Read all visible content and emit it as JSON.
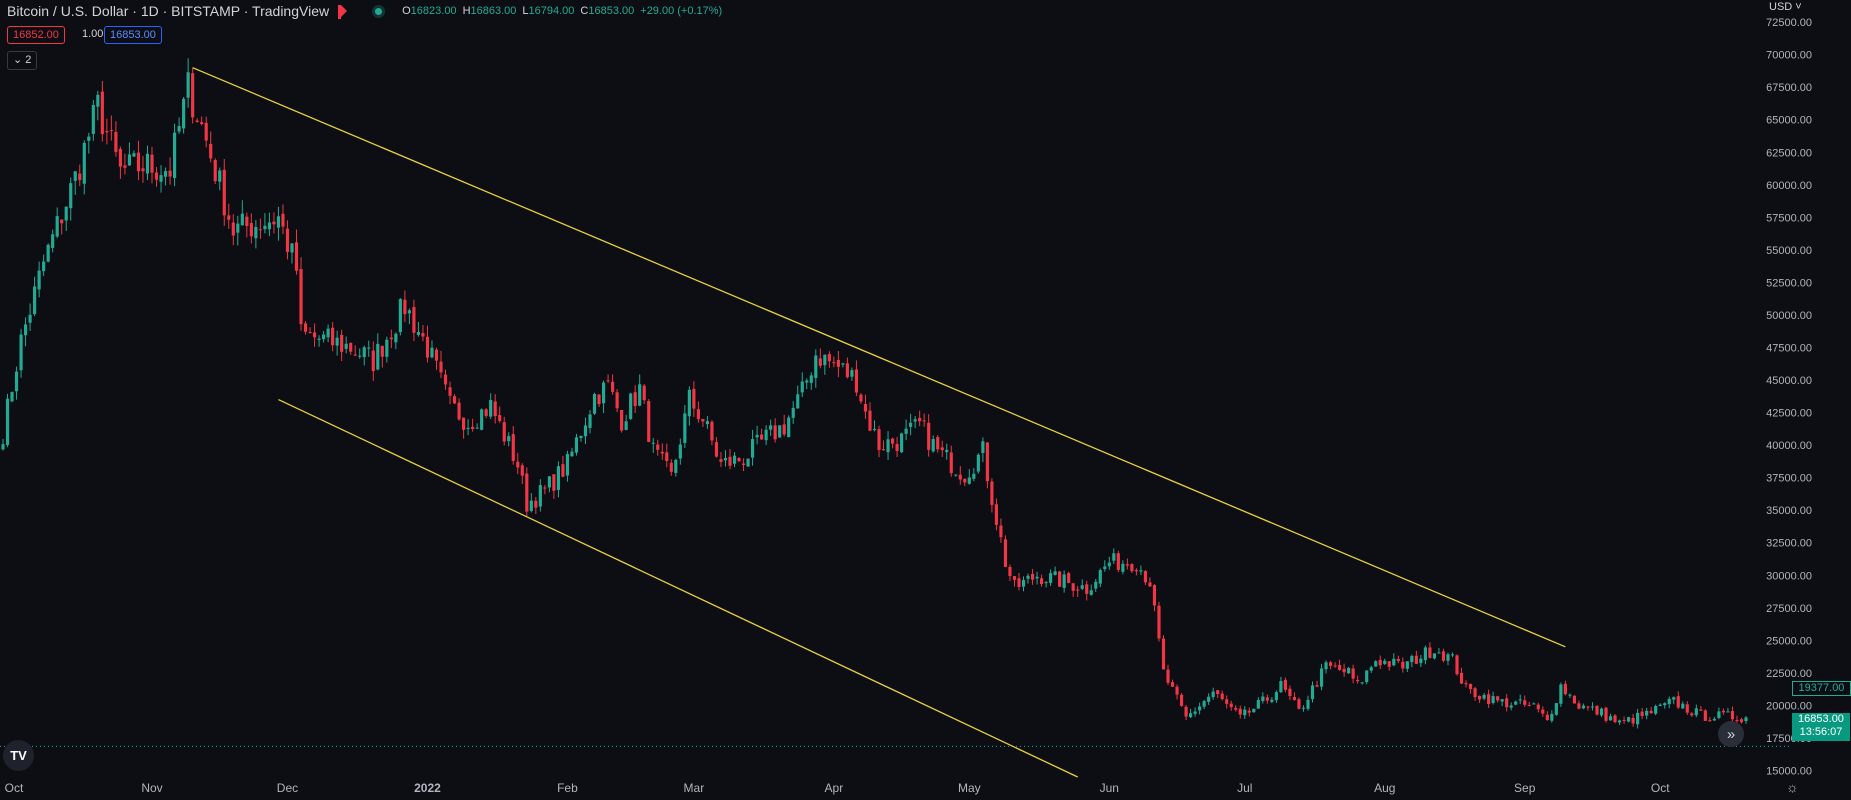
{
  "header": {
    "symbol_title": "Bitcoin / U.S. Dollar · 1D · BITSTAMP · TradingView",
    "ohlc": [
      {
        "k": "O",
        "v": "16823.00"
      },
      {
        "k": "H",
        "v": "16863.00"
      },
      {
        "k": "L",
        "v": "16794.00"
      },
      {
        "k": "C",
        "v": "16853.00"
      },
      {
        "k": "",
        "v": "+29.00 (+0.17%)"
      }
    ],
    "sell_price": "16852.00",
    "spread": "1.00",
    "buy_price": "16853.00",
    "indicators_toggle": "2"
  },
  "currency": "USD",
  "price_tags": {
    "mid": "19377.00",
    "last_price": "16853.00",
    "countdown": "13:56:07"
  },
  "colors": {
    "background": "#0d0e13",
    "up": "#22ab94",
    "down": "#f23645",
    "trendline": "#e8d13a",
    "axis_text": "#b2b5be"
  },
  "chart_data": {
    "type": "candlestick",
    "symbol": "BTCUSD",
    "interval": "1D",
    "ylim": [
      13500,
      74200
    ],
    "y_ticks": [
      15000,
      17500,
      20000,
      22500,
      25000,
      27500,
      30000,
      32500,
      35000,
      37500,
      40000,
      42500,
      45000,
      47500,
      50000,
      52500,
      55000,
      57500,
      60000,
      62500,
      65000,
      67500,
      70000,
      72500
    ],
    "y_tick_labels": [
      "15000.00",
      "17500.00",
      "20000.00",
      "22500.00",
      "25000.00",
      "27500.00",
      "30000.00",
      "32500.00",
      "35000.00",
      "37500.00",
      "40000.00",
      "42500.00",
      "45000.00",
      "47500.00",
      "50000.00",
      "52500.00",
      "55000.00",
      "57500.00",
      "60000.00",
      "62500.00",
      "65000.00",
      "67500.00",
      "70000.00",
      "72500.00"
    ],
    "x_tick_labels": [
      "Oct",
      "Nov",
      "Dec",
      "2022",
      "Feb",
      "Mar",
      "Apr",
      "May",
      "Jun",
      "Jul",
      "Aug",
      "Sep",
      "Oct"
    ],
    "x_tick_dates": [
      "2021-10-01",
      "2021-11-01",
      "2021-12-01",
      "2022-01-01",
      "2022-02-01",
      "2022-03-01",
      "2022-04-01",
      "2022-05-01",
      "2022-06-01",
      "2022-07-01",
      "2022-08-01",
      "2022-09-01",
      "2022-10-01"
    ],
    "start_date": "2021-09-29",
    "end_date": "2022-10-20",
    "close_anchors": [
      [
        "2021-09-29",
        41000
      ],
      [
        "2021-10-03",
        48000
      ],
      [
        "2021-10-08",
        54000
      ],
      [
        "2021-10-15",
        60500
      ],
      [
        "2021-10-20",
        66000
      ],
      [
        "2021-10-25",
        61000
      ],
      [
        "2021-10-30",
        61500
      ],
      [
        "2021-11-05",
        61200
      ],
      [
        "2021-11-09",
        67500
      ],
      [
        "2021-11-12",
        64500
      ],
      [
        "2021-11-16",
        60000
      ],
      [
        "2021-11-19",
        56500
      ],
      [
        "2021-11-24",
        57000
      ],
      [
        "2021-11-29",
        57500
      ],
      [
        "2021-12-03",
        53500
      ],
      [
        "2021-12-04",
        48500
      ],
      [
        "2021-12-10",
        48000
      ],
      [
        "2021-12-15",
        47500
      ],
      [
        "2021-12-20",
        46500
      ],
      [
        "2021-12-27",
        50700
      ],
      [
        "2022-01-01",
        47500
      ],
      [
        "2022-01-06",
        43000
      ],
      [
        "2022-01-10",
        41800
      ],
      [
        "2022-01-15",
        43000
      ],
      [
        "2022-01-21",
        38500
      ],
      [
        "2022-01-23",
        35500
      ],
      [
        "2022-01-27",
        36500
      ],
      [
        "2022-02-01",
        38500
      ],
      [
        "2022-02-07",
        43800
      ],
      [
        "2022-02-10",
        44500
      ],
      [
        "2022-02-13",
        42000
      ],
      [
        "2022-02-17",
        44300
      ],
      [
        "2022-02-20",
        39500
      ],
      [
        "2022-02-24",
        37500
      ],
      [
        "2022-02-28",
        43500
      ],
      [
        "2022-03-03",
        42000
      ],
      [
        "2022-03-07",
        38500
      ],
      [
        "2022-03-12",
        39000
      ],
      [
        "2022-03-17",
        40500
      ],
      [
        "2022-03-21",
        41500
      ],
      [
        "2022-03-25",
        44000
      ],
      [
        "2022-03-28",
        47000
      ],
      [
        "2022-04-02",
        46000
      ],
      [
        "2022-04-06",
        45000
      ],
      [
        "2022-04-08",
        42500
      ],
      [
        "2022-04-11",
        40000
      ],
      [
        "2022-04-16",
        40400
      ],
      [
        "2022-04-20",
        41500
      ],
      [
        "2022-04-24",
        39500
      ],
      [
        "2022-04-30",
        37800
      ],
      [
        "2022-05-04",
        39500
      ],
      [
        "2022-05-06",
        36000
      ],
      [
        "2022-05-09",
        31000
      ],
      [
        "2022-05-11",
        29000
      ],
      [
        "2022-05-16",
        30000
      ],
      [
        "2022-05-22",
        29500
      ],
      [
        "2022-05-27",
        29000
      ],
      [
        "2022-06-01",
        31000
      ],
      [
        "2022-06-07",
        31000
      ],
      [
        "2022-06-10",
        29500
      ],
      [
        "2022-06-13",
        22500
      ],
      [
        "2022-06-18",
        19000
      ],
      [
        "2022-06-24",
        21000
      ],
      [
        "2022-06-30",
        19000
      ],
      [
        "2022-07-06",
        20500
      ],
      [
        "2022-07-09",
        21500
      ],
      [
        "2022-07-13",
        19500
      ],
      [
        "2022-07-19",
        23000
      ],
      [
        "2022-07-24",
        22500
      ],
      [
        "2022-07-26",
        21500
      ],
      [
        "2022-07-30",
        23500
      ],
      [
        "2022-08-05",
        23000
      ],
      [
        "2022-08-12",
        24400
      ],
      [
        "2022-08-16",
        23500
      ],
      [
        "2022-08-19",
        21200
      ],
      [
        "2022-08-26",
        20300
      ],
      [
        "2022-09-03",
        19900
      ],
      [
        "2022-09-06",
        18800
      ],
      [
        "2022-09-09",
        21500
      ],
      [
        "2022-09-13",
        20000
      ],
      [
        "2022-09-18",
        19400
      ],
      [
        "2022-09-22",
        18600
      ],
      [
        "2022-09-28",
        19300
      ],
      [
        "2022-10-04",
        20300
      ],
      [
        "2022-10-10",
        19200
      ],
      [
        "2022-10-20",
        19100
      ]
    ],
    "last_close": 16853,
    "trendlines": [
      {
        "name": "upper-channel-line",
        "from": {
          "date": "2021-11-10",
          "price": 69000
        },
        "to": {
          "date": "2022-09-10",
          "price": 24500
        }
      },
      {
        "name": "lower-channel-line",
        "from": {
          "date": "2021-11-29",
          "price": 43500
        },
        "to": {
          "date": "2022-05-25",
          "price": 14500
        }
      }
    ],
    "last_price_line": 16853,
    "grid": false
  }
}
